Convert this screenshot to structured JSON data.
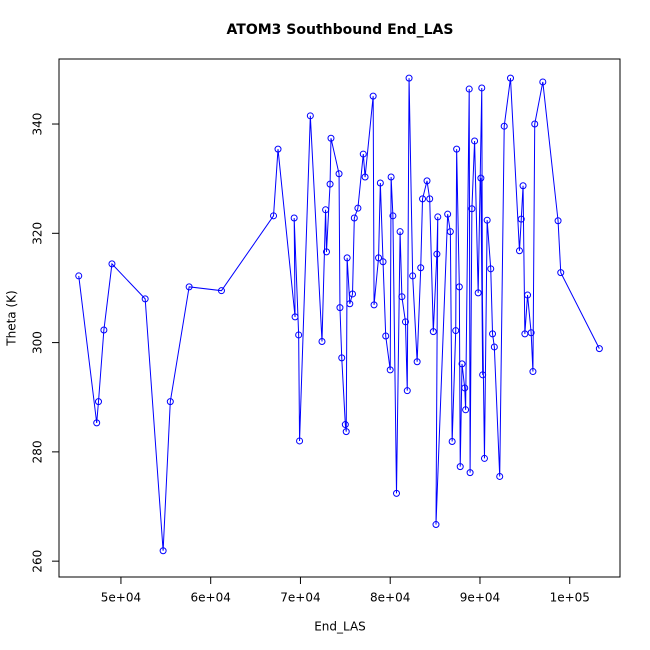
{
  "chart_data": {
    "type": "line",
    "title": "ATOM3 Southbound End_LAS",
    "x_label": "End_LAS",
    "y_label": "Theta (K)",
    "color": "#0000ff",
    "markers": true,
    "x": [
      45300,
      47300,
      47500,
      48100,
      49000,
      52700,
      54700,
      55500,
      57600,
      61200,
      67000,
      67500,
      69400,
      69300,
      69800,
      69900,
      71100,
      72400,
      72800,
      72900,
      73300,
      73400,
      74300,
      74400,
      74600,
      75000,
      75100,
      75200,
      75500,
      75800,
      76000,
      76400,
      77000,
      77200,
      78100,
      78200,
      78700,
      78900,
      79200,
      79500,
      80000,
      80100,
      80300,
      80700,
      81100,
      81300,
      81700,
      81900,
      82100,
      82500,
      83000,
      83400,
      83600,
      84100,
      84400,
      84800,
      85200,
      85300,
      85100,
      86400,
      86700,
      86900,
      87300,
      87400,
      87700,
      87800,
      88000,
      88300,
      88400,
      88800,
      88900,
      89100,
      89400,
      89800,
      90200,
      90300,
      90100,
      90500,
      90800,
      91200,
      91400,
      91600,
      92200,
      92700,
      93400,
      94400,
      94600,
      94800,
      95000,
      95300,
      95700,
      95900,
      96100,
      97000,
      98700,
      99000,
      103300
    ],
    "series": [
      {
        "name": "Theta",
        "color": "#0000ff",
        "values": [
          312.2,
          285.3,
          289.2,
          302.3,
          314.4,
          308,
          261.9,
          289.2,
          310.2,
          309.5,
          323.2,
          335.4,
          304.7,
          322.8,
          301.4,
          282,
          341.5,
          300.2,
          324.3,
          316.6,
          329,
          337.4,
          330.9,
          306.4,
          297.2,
          285,
          283.7,
          315.5,
          307.1,
          308.9,
          322.8,
          324.6,
          334.5,
          330.3,
          345.1,
          306.9,
          315.5,
          329.2,
          314.8,
          301.2,
          295,
          330.3,
          323.2,
          272.4,
          320.3,
          308.4,
          303.8,
          291.2,
          348.4,
          312.2,
          296.5,
          313.7,
          326.3,
          329.6,
          326.3,
          302,
          316.2,
          323,
          266.7,
          323.5,
          320.3,
          281.9,
          302.2,
          335.4,
          310.2,
          277.3,
          296.1,
          291.7,
          287.7,
          346.4,
          276.2,
          324.5,
          336.9,
          309.1,
          346.6,
          294.1,
          330.1,
          278.8,
          322.4,
          313.5,
          301.6,
          299.2,
          275.5,
          339.6,
          348.4,
          316.8,
          322.6,
          328.7,
          301.6,
          308.7,
          301.8,
          294.7,
          340,
          347.7,
          322.3,
          312.8,
          298.9
        ]
      }
    ],
    "xlim": [
      43100,
      105600
    ],
    "ylim": [
      257.1,
      351.9
    ],
    "xticks": [
      {
        "value": 50000,
        "label": "5e+04"
      },
      {
        "value": 60000,
        "label": "6e+04"
      },
      {
        "value": 70000,
        "label": "7e+04"
      },
      {
        "value": 80000,
        "label": "8e+04"
      },
      {
        "value": 90000,
        "label": "9e+04"
      },
      {
        "value": 100000,
        "label": "1e+05"
      }
    ],
    "yticks": [
      260,
      280,
      300,
      320,
      340
    ]
  }
}
